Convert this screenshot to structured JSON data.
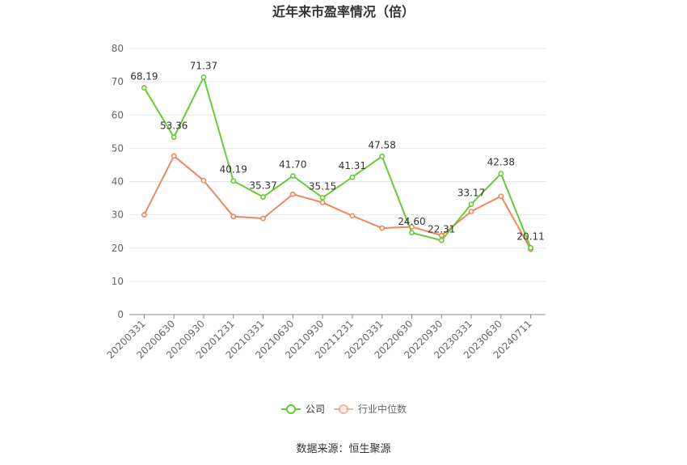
{
  "chart_data": {
    "type": "line",
    "title": "近年来市盈率情况（倍）",
    "categories": [
      "20200331",
      "20200630",
      "20200930",
      "20201231",
      "20210331",
      "20210630",
      "20210930",
      "20211231",
      "20220331",
      "20220630",
      "20220930",
      "20230331",
      "20230630",
      "20240711"
    ],
    "series": [
      {
        "name": "公司",
        "color": "#66cc33",
        "values": [
          68.19,
          53.36,
          71.37,
          40.19,
          35.37,
          41.7,
          35.15,
          41.31,
          47.58,
          24.6,
          22.31,
          33.17,
          42.38,
          20.11
        ],
        "labels": [
          "68.19",
          "53.36",
          "71.37",
          "40.19",
          "35.37",
          "41.70",
          "35.15",
          "41.31",
          "47.58",
          "24.60",
          "22.31",
          "33.17",
          "42.38",
          "20.11"
        ]
      },
      {
        "name": "行业中位数",
        "color": "#f0875a",
        "values": [
          30.0,
          47.7,
          40.3,
          29.5,
          28.9,
          36.2,
          33.7,
          29.7,
          26.0,
          26.4,
          23.8,
          31.0,
          35.6,
          19.6
        ]
      }
    ],
    "ylim": [
      0,
      80
    ],
    "yticks": [
      0,
      10,
      20,
      30,
      40,
      50,
      60,
      70,
      80
    ],
    "ytick_labels": [
      "0",
      "10",
      "20",
      "30",
      "40",
      "50",
      "60",
      "70",
      "80"
    ],
    "grid": true,
    "legend_position": "bottom",
    "source": "数据来源：恒生聚源"
  }
}
